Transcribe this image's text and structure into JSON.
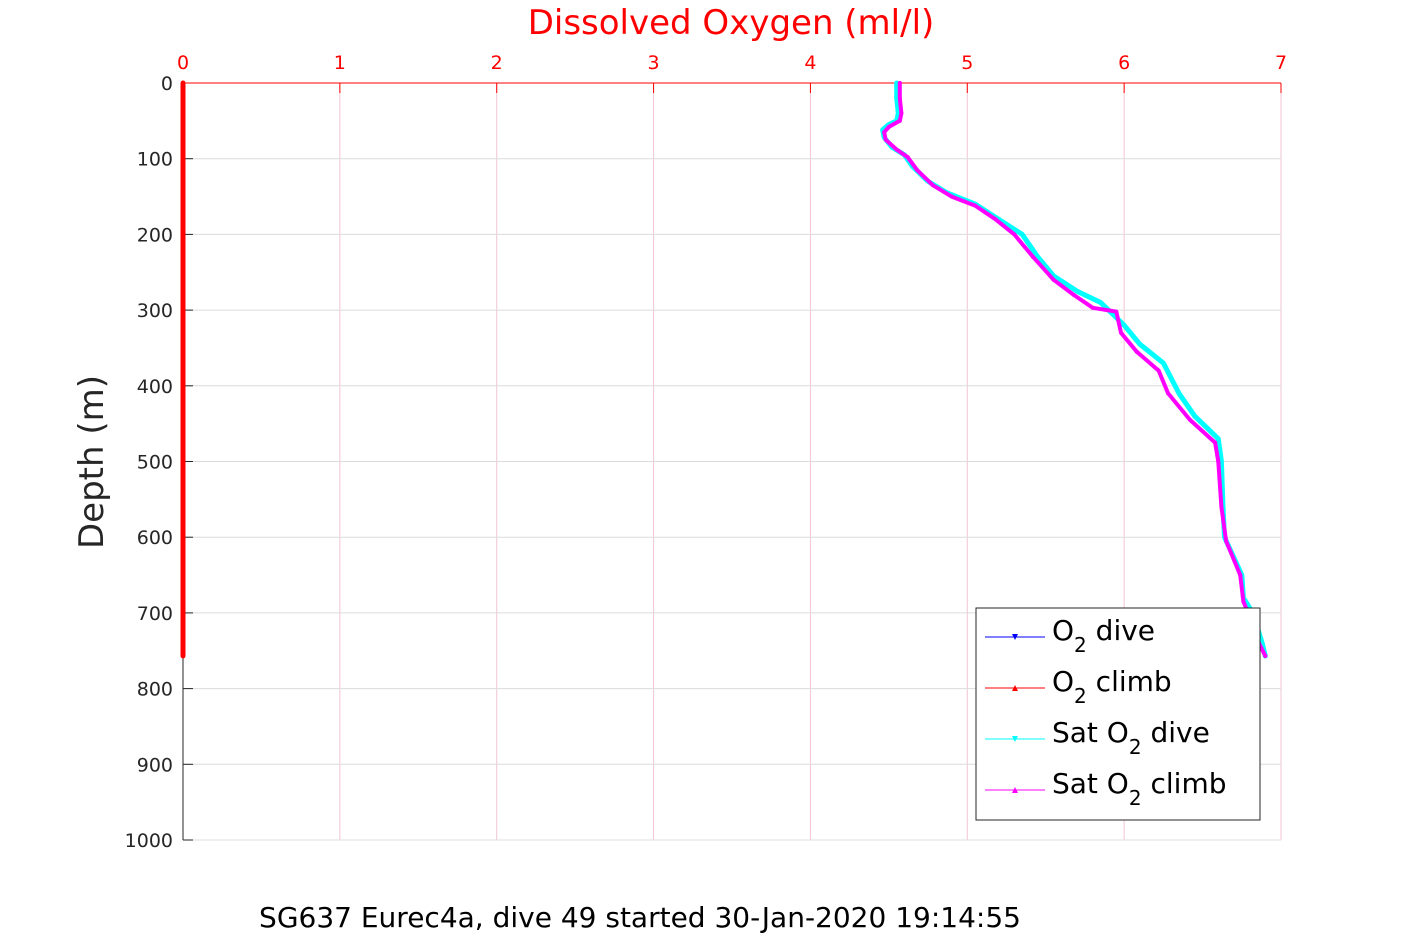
{
  "chart_data": {
    "type": "line",
    "title": "",
    "xlabel": "Dissolved Oxygen (ml/l)",
    "ylabel": "Depth (m)",
    "caption": "SG637 Eurec4a, dive 49 started 30-Jan-2020 19:14:55",
    "xlim": [
      0,
      7
    ],
    "ylim": [
      0,
      1000
    ],
    "y_reversed": true,
    "x_axis_position": "top",
    "grid": true,
    "x_ticks": [
      "0",
      "1",
      "2",
      "3",
      "4",
      "5",
      "6",
      "7"
    ],
    "y_ticks": [
      "0",
      "100",
      "200",
      "300",
      "400",
      "500",
      "600",
      "700",
      "800",
      "900",
      "1000"
    ],
    "legend_position": "bottom-right",
    "series": [
      {
        "name": "O2 dive",
        "legend": {
          "pre": "O",
          "sub": "2",
          "post": " dive"
        },
        "color": "#0000ff",
        "marker": "triangle-down",
        "points": []
      },
      {
        "name": "O2 climb",
        "legend": {
          "pre": "O",
          "sub": "2",
          "post": " climb"
        },
        "color": "#ff0000",
        "marker": "triangle-up",
        "points": [
          [
            0.0,
            0
          ],
          [
            0.0,
            100
          ],
          [
            0.0,
            200
          ],
          [
            0.0,
            300
          ],
          [
            0.0,
            400
          ],
          [
            0.0,
            500
          ],
          [
            0.0,
            600
          ],
          [
            0.0,
            700
          ],
          [
            0.0,
            757
          ]
        ]
      },
      {
        "name": "Sat O2 dive",
        "legend": {
          "pre": "Sat O",
          "sub": "2",
          "post": " dive"
        },
        "color": "#00ffff",
        "marker": "triangle-down",
        "points": [
          [
            4.55,
            0
          ],
          [
            4.55,
            20
          ],
          [
            4.56,
            40
          ],
          [
            4.55,
            50
          ],
          [
            4.5,
            55
          ],
          [
            4.46,
            62
          ],
          [
            4.47,
            72
          ],
          [
            4.52,
            85
          ],
          [
            4.6,
            95
          ],
          [
            4.65,
            110
          ],
          [
            4.75,
            130
          ],
          [
            4.87,
            145
          ],
          [
            5.05,
            160
          ],
          [
            5.2,
            180
          ],
          [
            5.35,
            200
          ],
          [
            5.45,
            230
          ],
          [
            5.55,
            255
          ],
          [
            5.7,
            275
          ],
          [
            5.85,
            290
          ],
          [
            5.9,
            300
          ],
          [
            6.0,
            320
          ],
          [
            6.1,
            345
          ],
          [
            6.25,
            370
          ],
          [
            6.35,
            410
          ],
          [
            6.45,
            440
          ],
          [
            6.6,
            470
          ],
          [
            6.62,
            500
          ],
          [
            6.63,
            560
          ],
          [
            6.64,
            600
          ],
          [
            6.75,
            650
          ],
          [
            6.76,
            680
          ],
          [
            6.82,
            700
          ],
          [
            6.88,
            740
          ],
          [
            6.9,
            757
          ]
        ]
      },
      {
        "name": "Sat O2 climb",
        "legend": {
          "pre": "Sat O",
          "sub": "2",
          "post": " climb"
        },
        "color": "#ff00ff",
        "marker": "triangle-up",
        "points": [
          [
            4.57,
            0
          ],
          [
            4.57,
            20
          ],
          [
            4.58,
            40
          ],
          [
            4.57,
            50
          ],
          [
            4.5,
            58
          ],
          [
            4.47,
            65
          ],
          [
            4.48,
            75
          ],
          [
            4.55,
            88
          ],
          [
            4.62,
            98
          ],
          [
            4.68,
            115
          ],
          [
            4.78,
            135
          ],
          [
            4.9,
            150
          ],
          [
            5.05,
            162
          ],
          [
            5.18,
            180
          ],
          [
            5.3,
            200
          ],
          [
            5.42,
            230
          ],
          [
            5.55,
            260
          ],
          [
            5.68,
            280
          ],
          [
            5.8,
            297
          ],
          [
            5.95,
            302
          ],
          [
            5.98,
            330
          ],
          [
            6.08,
            355
          ],
          [
            6.22,
            380
          ],
          [
            6.28,
            410
          ],
          [
            6.42,
            445
          ],
          [
            6.58,
            475
          ],
          [
            6.6,
            500
          ],
          [
            6.62,
            560
          ],
          [
            6.65,
            605
          ],
          [
            6.74,
            650
          ],
          [
            6.76,
            685
          ],
          [
            6.8,
            705
          ],
          [
            6.86,
            740
          ],
          [
            6.9,
            757
          ]
        ]
      }
    ]
  }
}
